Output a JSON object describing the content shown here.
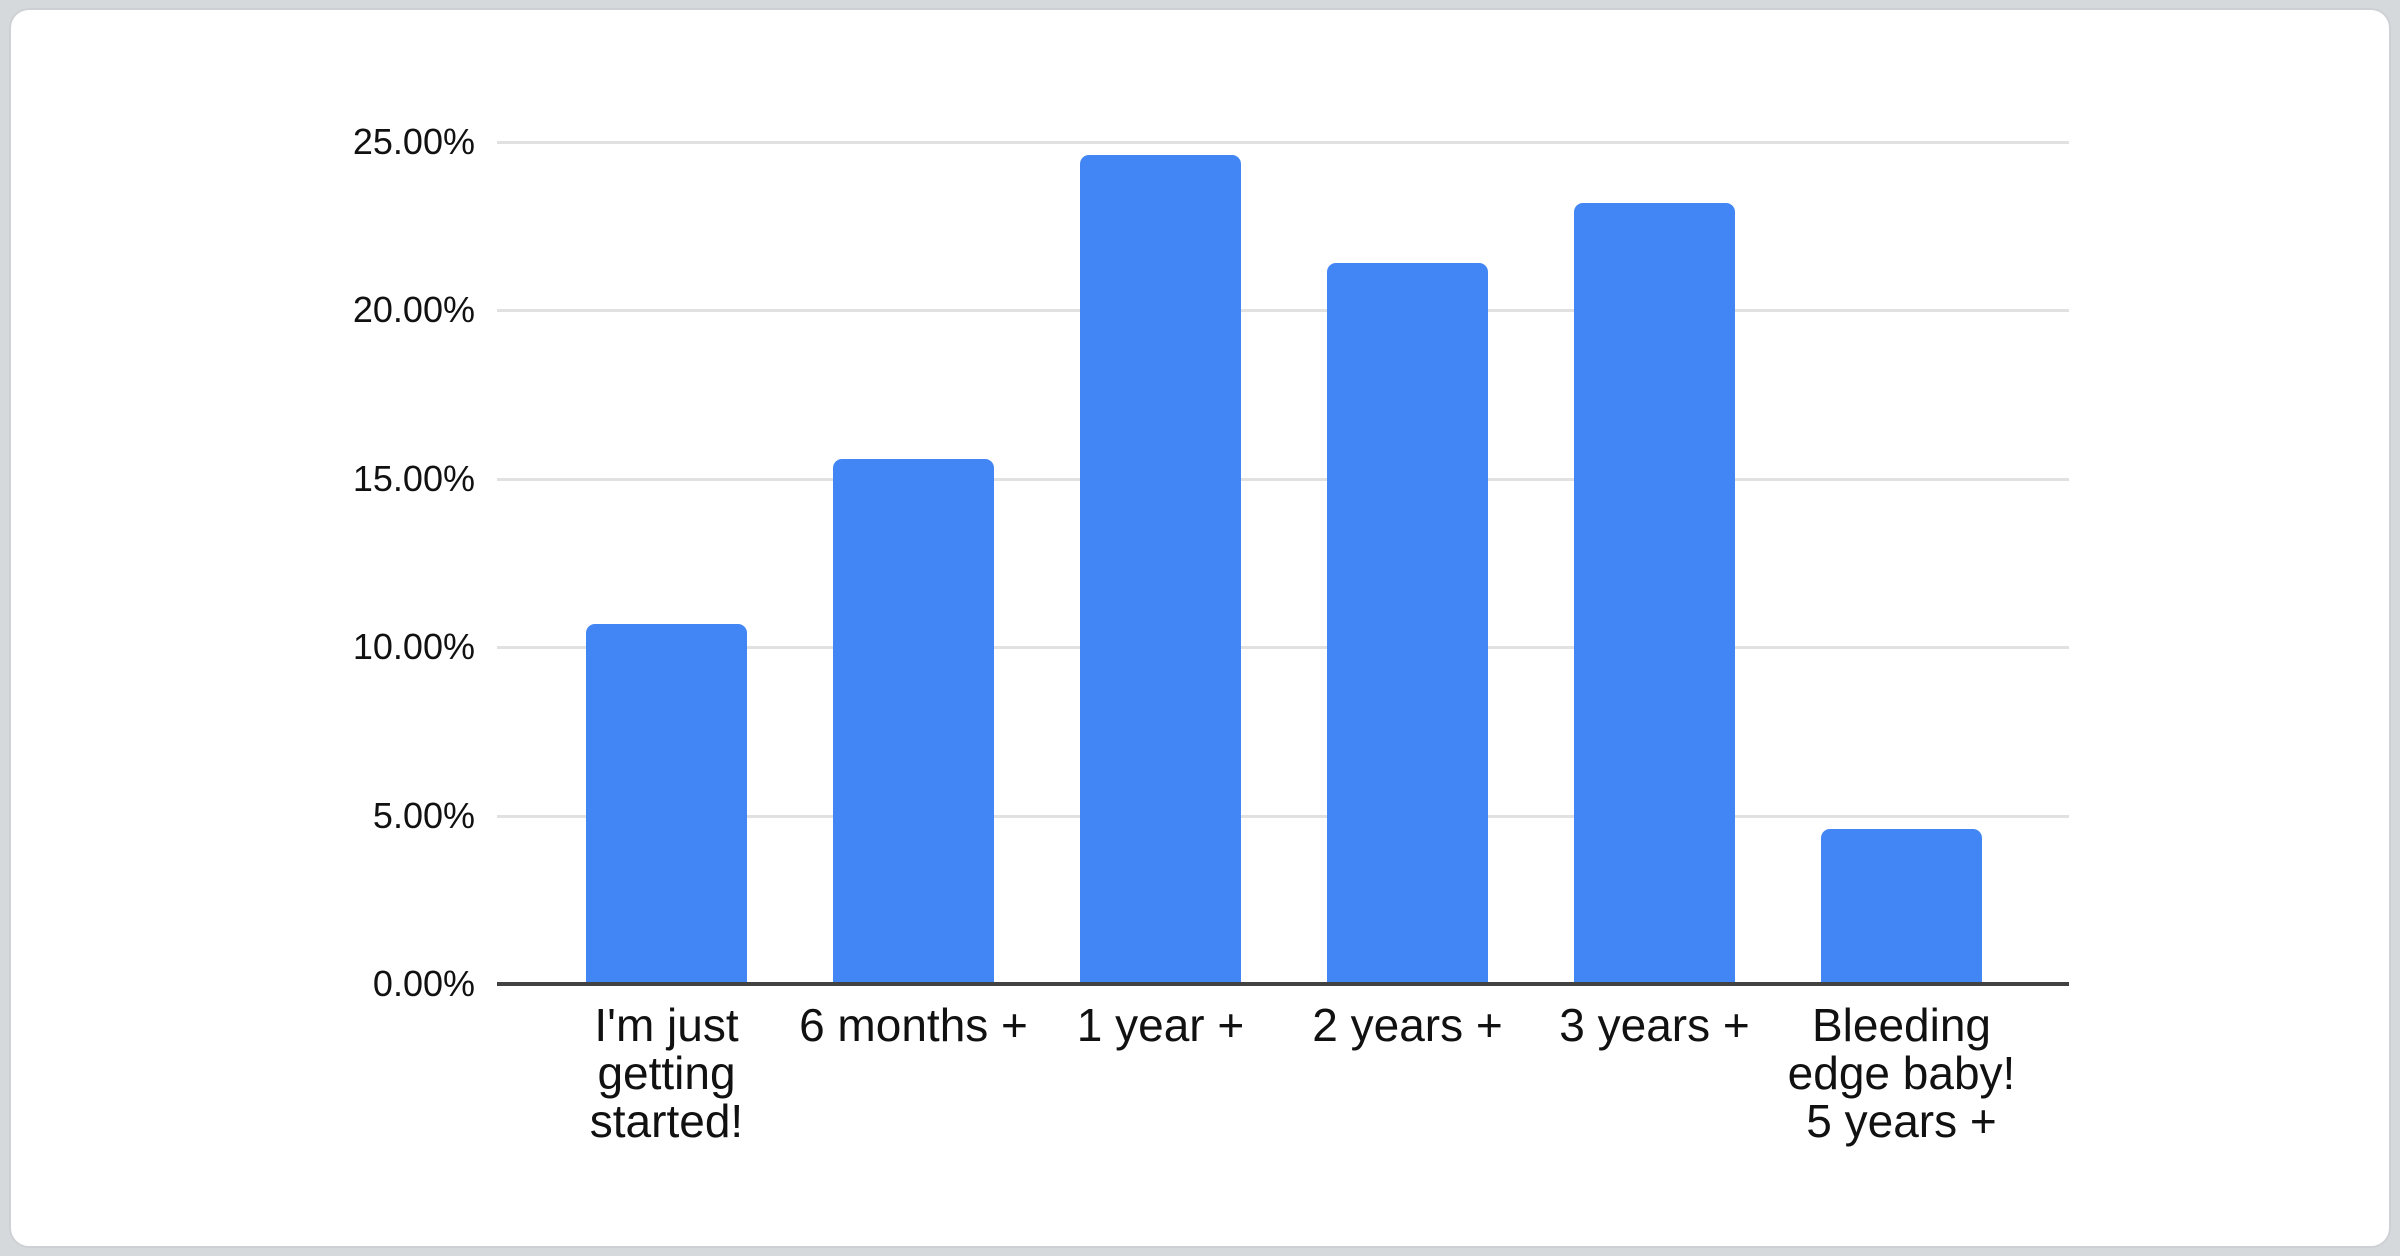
{
  "page": {
    "background_color": "#d5d9dc",
    "card_background_color": "#ffffff",
    "card_border_color": "#cdd1d5"
  },
  "chart_data": {
    "type": "bar",
    "title": "",
    "xlabel": "",
    "ylabel": "",
    "categories": [
      "I'm just getting started!",
      "6 months +",
      "1 year +",
      "2 years +",
      "3 years +",
      "Bleeding edge baby! 5 years +"
    ],
    "category_display_lines": [
      [
        "I'm just",
        "getting",
        "started!"
      ],
      [
        "6 months +"
      ],
      [
        "1 year +"
      ],
      [
        "2 years +"
      ],
      [
        "3 years +"
      ],
      [
        "Bleeding",
        "edge baby!",
        "5 years +"
      ]
    ],
    "values": [
      10.7,
      15.6,
      24.6,
      21.4,
      23.2,
      4.6
    ],
    "value_unit": "%",
    "ylim": [
      0,
      25
    ],
    "y_tick_interval": 5,
    "y_tick_labels": [
      "0.00%",
      "5.00%",
      "10.00%",
      "15.00%",
      "20.00%",
      "25.00%"
    ],
    "grid": true,
    "legend": "none",
    "bar_color": "#4285F4",
    "gridline_color": "#e1e1e1",
    "axis_line_color": "#424242",
    "tick_label_color": "#111111"
  }
}
